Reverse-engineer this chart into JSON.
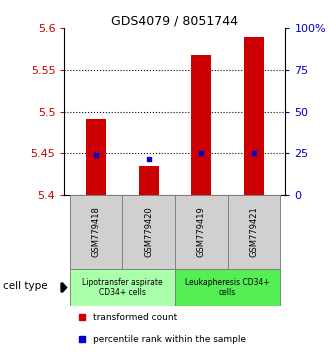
{
  "title": "GDS4079 / 8051744",
  "samples": [
    "GSM779418",
    "GSM779420",
    "GSM779419",
    "GSM779421"
  ],
  "red_values": [
    5.491,
    5.435,
    5.568,
    5.59
  ],
  "blue_values": [
    5.448,
    5.443,
    5.45,
    5.45
  ],
  "ymin": 5.4,
  "ymax": 5.6,
  "yticks": [
    5.4,
    5.45,
    5.5,
    5.55,
    5.6
  ],
  "ytick_labels": [
    "5.4",
    "5.45",
    "5.5",
    "5.55",
    "5.6"
  ],
  "y2ticks": [
    0,
    25,
    50,
    75,
    100
  ],
  "y2tick_labels": [
    "0",
    "25",
    "50",
    "75",
    "100%"
  ],
  "dotted_lines": [
    5.45,
    5.5,
    5.55
  ],
  "groups": [
    {
      "label": "Lipotransfer aspirate\nCD34+ cells",
      "color": "#aaffaa",
      "samples": [
        0,
        1
      ]
    },
    {
      "label": "Leukapheresis CD34+\ncells",
      "color": "#55ee55",
      "samples": [
        2,
        3
      ]
    }
  ],
  "cell_type_label": "cell type",
  "legend_red": "transformed count",
  "legend_blue": "percentile rank within the sample",
  "bar_color": "#cc0000",
  "dot_color": "#0000cc",
  "tick_color_left": "#cc0000",
  "tick_color_right": "#0000cc",
  "sample_bg_color": "#d0d0d0",
  "plot_bg": "#ffffff"
}
